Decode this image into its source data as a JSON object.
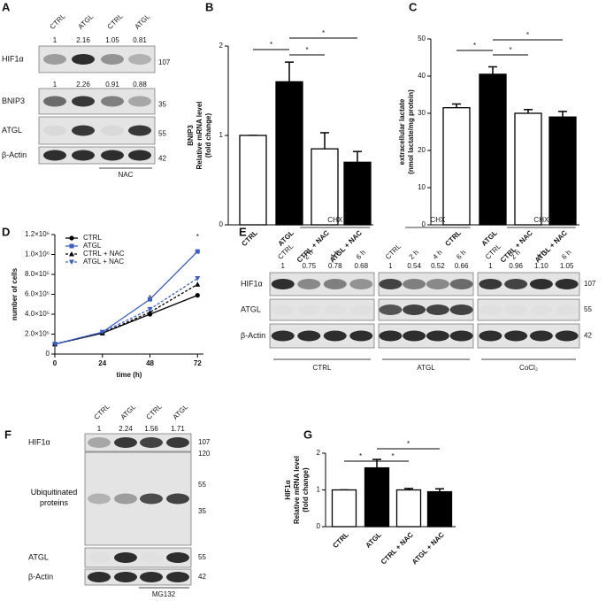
{
  "panel_labels": [
    "A",
    "B",
    "C",
    "D",
    "E",
    "F",
    "G"
  ],
  "chart_data": [
    {
      "type": "bar",
      "ylabel": [
        "BNIP3",
        "Relative mRNA level",
        "(fold change)"
      ],
      "categories": [
        "CTRL",
        "ATGL",
        "CTRL + NAC",
        "ATGL + NAC"
      ],
      "values": [
        1,
        1.6,
        0.85,
        0.7
      ],
      "errors": [
        0,
        0.22,
        0.18,
        0.12
      ],
      "colors": [
        "#ffffff",
        "#000000",
        "#ffffff",
        "#000000"
      ],
      "ylim": [
        0,
        2
      ],
      "yticks": [
        0,
        1,
        2
      ],
      "annotations": [
        "*",
        "*",
        "*"
      ]
    },
    {
      "type": "bar",
      "ylabel": [
        "extracellular lactate",
        "(nmol lactate/mg protein)"
      ],
      "categories": [
        "CTRL",
        "ATGL",
        "CTRL + NAC",
        "ATGL + NAC"
      ],
      "values": [
        31.5,
        40.5,
        30,
        29
      ],
      "errors": [
        1,
        2,
        1,
        1.5
      ],
      "colors": [
        "#ffffff",
        "#000000",
        "#ffffff",
        "#000000"
      ],
      "ylim": [
        0,
        50
      ],
      "yticks": [
        0,
        10,
        20,
        30,
        40,
        50
      ],
      "annotations": [
        "*",
        "*",
        "*"
      ]
    },
    {
      "type": "line",
      "ylabel": [
        "number of cells"
      ],
      "xlabel": "time (h)",
      "x": [
        0,
        24,
        48,
        72
      ],
      "xlim": [
        0,
        75
      ],
      "xticks": [
        0,
        24,
        48,
        72
      ],
      "ylim": [
        0,
        1200000
      ],
      "yticks": [
        0,
        {
          "value": 200000,
          "label": "2.0×10⁵"
        },
        {
          "value": 400000,
          "label": "4.0×10⁵"
        },
        {
          "value": 600000,
          "label": "6.0×10⁵"
        },
        {
          "value": 800000,
          "label": "8.0×10⁵"
        },
        {
          "value": 1000000,
          "label": "1.0×10⁶"
        },
        {
          "value": 1200000,
          "label": "1.2×10⁶"
        }
      ],
      "legend": "upper left",
      "series": [
        {
          "name": "CTRL",
          "color": "#000000",
          "dash": false,
          "marker": "circle",
          "values": [
            100000,
            210000,
            400000,
            590000
          ]
        },
        {
          "name": "ATGL",
          "color": "#3a5fcd",
          "dash": false,
          "marker": "square",
          "values": [
            100000,
            220000,
            550000,
            1030000
          ]
        },
        {
          "name": "CTRL + NAC",
          "color": "#000000",
          "dash": true,
          "marker": "triangle",
          "values": [
            100000,
            210000,
            420000,
            700000
          ]
        },
        {
          "name": "ATGL + NAC",
          "color": "#3a5fcd",
          "dash": true,
          "marker": "triangle-down",
          "values": [
            100000,
            220000,
            450000,
            760000
          ]
        }
      ],
      "annotations": [
        "*",
        "*"
      ]
    },
    {
      "type": "bar",
      "ylabel": [
        "HIF1α",
        "Relative mRNA level",
        "(fold change)"
      ],
      "categories": [
        "CTRL",
        "ATGL",
        "CTRL + NAC",
        "ATGL + NAC"
      ],
      "values": [
        1,
        1.6,
        1.0,
        0.95
      ],
      "errors": [
        0,
        0.23,
        0.04,
        0.08
      ],
      "colors": [
        "#ffffff",
        "#000000",
        "#ffffff",
        "#000000"
      ],
      "ylim": [
        0,
        2
      ],
      "yticks": [
        0,
        1,
        2
      ],
      "annotations": [
        "*",
        "*",
        "*"
      ]
    }
  ],
  "blots": {
    "A": {
      "lanes": [
        "CTRL",
        "ATGL",
        "CTRL",
        "ATGL"
      ],
      "rows": [
        {
          "name": "HIF1α",
          "marker": "107",
          "quant": [
            "1",
            "2.16",
            "1.05",
            "0.81"
          ]
        },
        {
          "name": "BNIP3",
          "marker": "35",
          "quant": [
            "1",
            "2.26",
            "0.91",
            "0.88"
          ]
        },
        {
          "name": "ATGL",
          "marker": "55"
        },
        {
          "name": "β-Actin",
          "marker": "42"
        }
      ],
      "treatment": "NAC"
    },
    "E": {
      "groups": [
        {
          "header": "CHX",
          "lanes": [
            "CTRL",
            "2 h",
            "4 h",
            "6 h"
          ],
          "quant": [
            "1",
            "0.75",
            "0.78",
            "0.68"
          ],
          "label": "CTRL"
        },
        {
          "header": "CHX",
          "lanes": [
            "CTRL",
            "2 h",
            "4 h",
            "6 h"
          ],
          "quant": [
            "1",
            "0.54",
            "0.52",
            "0.66"
          ],
          "label": "ATGL"
        },
        {
          "header": "CHX",
          "lanes": [
            "CTRL",
            "2 h",
            "4 h",
            "6 h"
          ],
          "quant": [
            "1",
            "0.96",
            "1.10",
            "1.05"
          ],
          "label": "CoCl₂"
        }
      ],
      "rows": [
        {
          "name": "HIF1α",
          "marker": "107"
        },
        {
          "name": "ATGL",
          "marker": "55"
        },
        {
          "name": "β-Actin",
          "marker": "42"
        }
      ]
    },
    "F": {
      "lanes": [
        "CTRL",
        "ATGL",
        "CTRL",
        "ATGL"
      ],
      "rows": [
        {
          "name": "HIF1α",
          "marker": "107",
          "quant": [
            "1",
            "2.24",
            "1.56",
            "1.71"
          ]
        },
        {
          "name": "Ubiquitinated proteins",
          "markers": [
            "120",
            "55",
            "35"
          ]
        },
        {
          "name": "ATGL",
          "marker": "55"
        },
        {
          "name": "β-Actin",
          "marker": "42"
        }
      ],
      "treatment": "MG132"
    }
  }
}
